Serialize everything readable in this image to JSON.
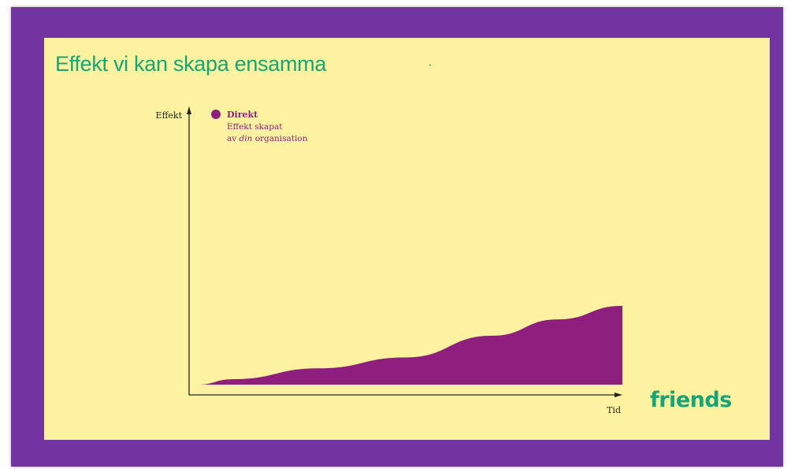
{
  "slide": {
    "title": "Effekt vi kan skapa ensamma"
  },
  "colors": {
    "frame": "#7234a0",
    "background": "#fcf29f",
    "title": "#16a478",
    "area": "#8f1f7f",
    "legend_text": "#8f1f7f",
    "axis": "#222222"
  },
  "logo": {
    "text": "friends",
    "icon": "heart-icon"
  },
  "chart_data": {
    "type": "area",
    "title": "",
    "xlabel": "Tid",
    "ylabel": "Effekt",
    "ylim": [
      0,
      100
    ],
    "xlim": [
      0,
      100
    ],
    "grid": false,
    "legend": {
      "placement": "top-left",
      "title": "Direkt",
      "line1": "Effekt skapat",
      "line2_prefix": "av ",
      "line2_italic": "din",
      "line2_suffix": " organisation"
    },
    "series": [
      {
        "name": "Direkt",
        "points": [
          {
            "x": 2,
            "y": 0
          },
          {
            "x": 10,
            "y": 2
          },
          {
            "x": 30,
            "y": 6
          },
          {
            "x": 50,
            "y": 10
          },
          {
            "x": 70,
            "y": 18
          },
          {
            "x": 85,
            "y": 24
          },
          {
            "x": 100,
            "y": 29
          }
        ]
      }
    ]
  }
}
